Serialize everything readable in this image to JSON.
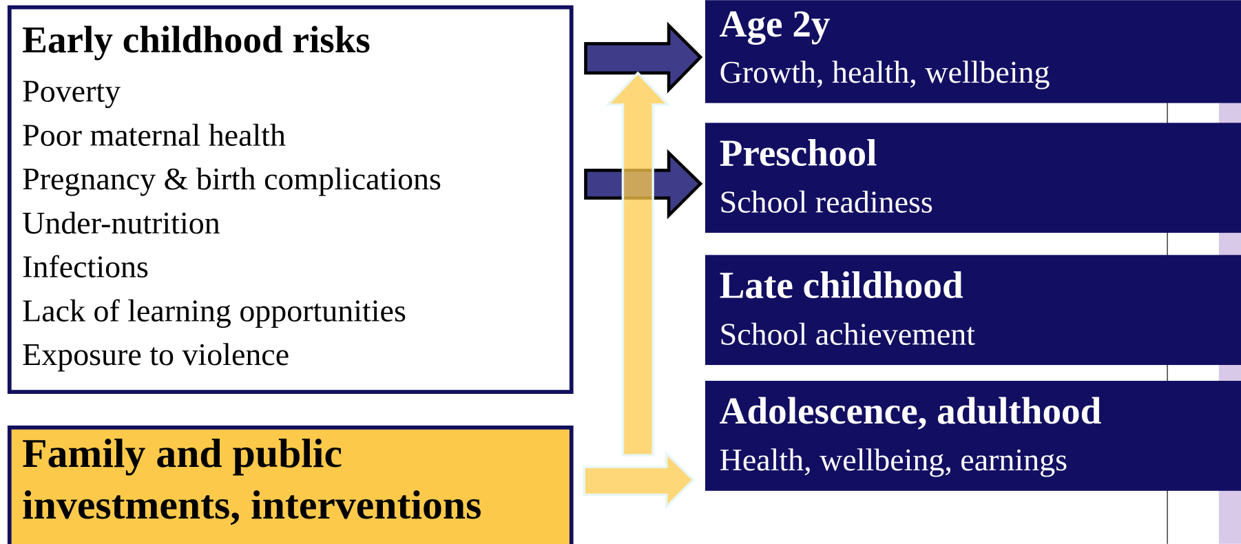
{
  "risks": {
    "title": "Early childhood risks",
    "items": [
      "Poverty",
      "Poor maternal health",
      "Pregnancy & birth complications",
      "Under-nutrition",
      "Infections",
      "Lack of learning opportunities",
      "Exposure to violence"
    ]
  },
  "investments": {
    "lines": [
      "Family and public",
      "investments, interventions"
    ]
  },
  "outcomes": [
    {
      "title": "Age 2y",
      "subtitle": "Growth, health, wellbeing"
    },
    {
      "title": "Preschool",
      "subtitle": "School readiness"
    },
    {
      "title": "Late childhood",
      "subtitle": "School achievement"
    },
    {
      "title": "Adolescence, adulthood",
      "subtitle": "Health, wellbeing, earnings"
    }
  ]
}
